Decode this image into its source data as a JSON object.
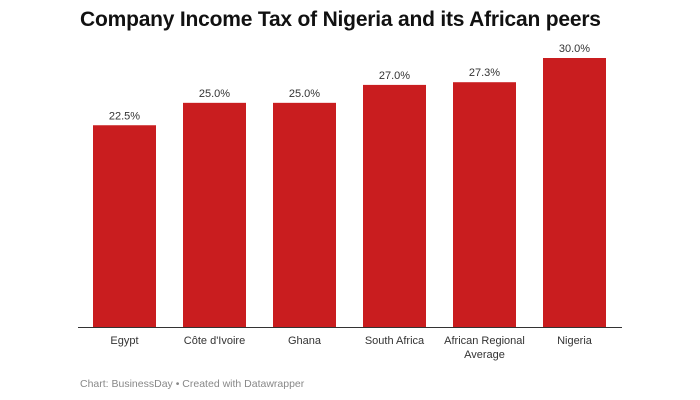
{
  "chart_data": {
    "type": "bar",
    "title": "Company Income Tax of Nigeria and its African peers",
    "categories": [
      "Egypt",
      "Côte d'Ivoire",
      "Ghana",
      "South Africa",
      "African Regional Average",
      "Nigeria"
    ],
    "values": [
      22.5,
      25.0,
      25.0,
      27.0,
      27.3,
      30.0
    ],
    "data_labels": [
      "22.5%",
      "25.0%",
      "25.0%",
      "27.0%",
      "27.3%",
      "30.0%"
    ],
    "xlabel": "",
    "ylabel": "",
    "ylim": [
      0,
      30
    ],
    "grid": false,
    "bar_color": "#c91d1f"
  },
  "footer": "Chart: BusinessDay • Created with Datawrapper"
}
